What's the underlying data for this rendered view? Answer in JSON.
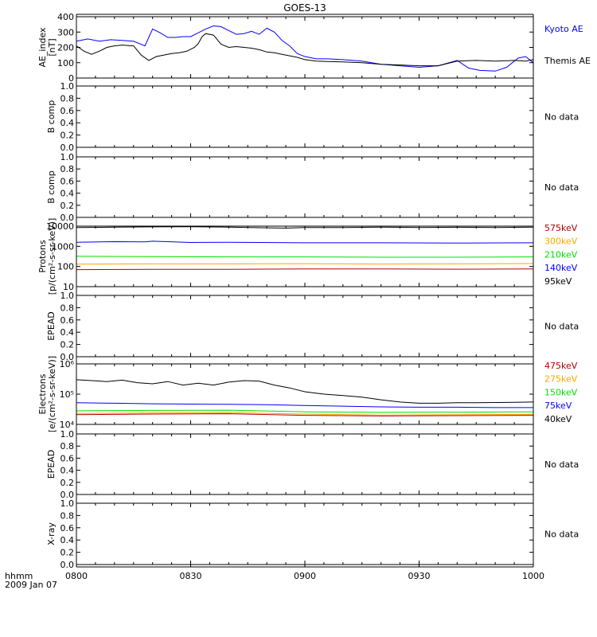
{
  "title": "GOES-13",
  "time_axis": {
    "ticks": [
      "0800",
      "0830",
      "0900",
      "0930",
      "1000"
    ],
    "row_label": "hhmm",
    "date_label": "2009 Jan 07"
  },
  "colors": {
    "axis": "#000000",
    "black": "#000000",
    "blue": "#0000ff",
    "green": "#00e000",
    "orange": "#ffa500",
    "red": "#b00000"
  },
  "chart_data": [
    {
      "id": "ae",
      "type": "line",
      "ylabel": [
        "AE_index",
        "[nT]"
      ],
      "ylim": [
        0,
        400
      ],
      "yticks": [
        "0",
        "100",
        "200",
        "300",
        "400"
      ],
      "x_range": [
        "08:00",
        "10:00"
      ],
      "series": [
        {
          "name": "Kyoto AE",
          "color": "#0000ff",
          "x": [
            0,
            3,
            6,
            9,
            12,
            15,
            18,
            20,
            22,
            24,
            26,
            28,
            30,
            32,
            34,
            36,
            38,
            40,
            42,
            44,
            46,
            48,
            50,
            52,
            54,
            56,
            58,
            60,
            63,
            66,
            70,
            75,
            80,
            85,
            90,
            95,
            100,
            103,
            106,
            110,
            113,
            116,
            118,
            120
          ],
          "y": [
            240,
            255,
            240,
            250,
            245,
            240,
            210,
            320,
            295,
            265,
            265,
            270,
            270,
            295,
            320,
            340,
            335,
            310,
            285,
            290,
            305,
            285,
            325,
            300,
            245,
            210,
            160,
            140,
            125,
            125,
            120,
            110,
            90,
            80,
            70,
            80,
            115,
            65,
            50,
            45,
            70,
            130,
            140,
            100
          ]
        },
        {
          "name": "Themis AE",
          "color": "#000000",
          "x": [
            0,
            2,
            4,
            6,
            8,
            10,
            12,
            15,
            17,
            19,
            21,
            23,
            25,
            27,
            29,
            31,
            32,
            33,
            34,
            36,
            38,
            40,
            42,
            44,
            46,
            48,
            50,
            52,
            54,
            56,
            58,
            60,
            63,
            66,
            70,
            75,
            80,
            85,
            90,
            95,
            100,
            105,
            110,
            115,
            118,
            120
          ],
          "y": [
            210,
            175,
            155,
            175,
            200,
            210,
            215,
            210,
            150,
            115,
            140,
            150,
            160,
            165,
            175,
            200,
            225,
            270,
            290,
            280,
            220,
            200,
            205,
            200,
            195,
            185,
            170,
            165,
            155,
            145,
            135,
            120,
            110,
            108,
            105,
            100,
            90,
            85,
            80,
            80,
            110,
            115,
            110,
            115,
            110,
            120
          ]
        }
      ],
      "legend": [
        "Kyoto AE",
        "Themis AE"
      ]
    },
    {
      "id": "b1",
      "type": "line",
      "ylabel": [
        "B comp"
      ],
      "ylim": [
        0,
        1
      ],
      "yticks": [
        "0.0",
        "0.2",
        "0.4",
        "0.6",
        "0.8",
        "1.0"
      ],
      "series": [],
      "annotation": "No data"
    },
    {
      "id": "b2",
      "type": "line",
      "ylabel": [
        "B comp"
      ],
      "ylim": [
        0,
        1
      ],
      "yticks": [
        "0.0",
        "0.2",
        "0.4",
        "0.6",
        "0.8",
        "1.0"
      ],
      "series": [],
      "annotation": "No data"
    },
    {
      "id": "protons",
      "type": "line",
      "log": true,
      "ylabel": [
        "Protons",
        "[p/(cm²-s-sr-keV)]"
      ],
      "ylim": [
        10,
        10000
      ],
      "yticks": [
        "10",
        "100",
        "1000",
        "10000"
      ],
      "series": [
        {
          "name": "575keV",
          "color": "#b00000",
          "x": [
            0,
            20,
            40,
            60,
            80,
            100,
            120
          ],
          "y": [
            70,
            72,
            72,
            75,
            75,
            73,
            75
          ]
        },
        {
          "name": "300keV",
          "color": "#ffa500",
          "x": [
            0,
            20,
            40,
            60,
            80,
            100,
            120
          ],
          "y": [
            130,
            135,
            135,
            138,
            132,
            135,
            140
          ]
        },
        {
          "name": "210keV",
          "color": "#00e000",
          "x": [
            0,
            20,
            40,
            60,
            80,
            100,
            120
          ],
          "y": [
            320,
            310,
            300,
            300,
            290,
            290,
            300
          ]
        },
        {
          "name": "140keV",
          "color": "#0000ff",
          "x": [
            0,
            10,
            18,
            20,
            30,
            40,
            60,
            80,
            100,
            120
          ],
          "y": [
            1600,
            1700,
            1650,
            1800,
            1550,
            1600,
            1500,
            1500,
            1450,
            1500
          ]
        },
        {
          "name": "95keV",
          "color": "#000000",
          "x": [
            0,
            10,
            20,
            30,
            40,
            50,
            55,
            60,
            70,
            80,
            90,
            100,
            110,
            120
          ],
          "y": [
            8500,
            8900,
            9200,
            9300,
            9000,
            8300,
            8000,
            8600,
            8500,
            8900,
            8600,
            8800,
            8500,
            8900
          ]
        }
      ],
      "legend": [
        "575keV",
        "300keV",
        "210keV",
        "140keV",
        "95keV"
      ]
    },
    {
      "id": "epead1",
      "type": "line",
      "ylabel": [
        "EPEAD"
      ],
      "ylim": [
        0,
        1
      ],
      "yticks": [
        "0.0",
        "0.2",
        "0.4",
        "0.6",
        "0.8",
        "1.0"
      ],
      "series": [],
      "annotation": "No data"
    },
    {
      "id": "electrons",
      "type": "line",
      "log": true,
      "ylabel": [
        "Electrons",
        "[e/(cm²-s-sr-keV)]"
      ],
      "ylim": [
        10000,
        1000000
      ],
      "yticks": [
        "10⁴",
        "10⁵",
        "10⁶"
      ],
      "series": [
        {
          "name": "475keV",
          "color": "#b00000",
          "x": [
            0,
            20,
            40,
            60,
            80,
            100,
            120
          ],
          "y": [
            21000,
            22000,
            22500,
            20000,
            19000,
            19500,
            20000
          ]
        },
        {
          "name": "275keV",
          "color": "#ffa500",
          "x": [
            0,
            20,
            40,
            60,
            80,
            100,
            120
          ],
          "y": [
            23000,
            24000,
            24500,
            22000,
            20500,
            21000,
            21500
          ]
        },
        {
          "name": "150keV",
          "color": "#00e000",
          "x": [
            0,
            20,
            40,
            60,
            80,
            100,
            120
          ],
          "y": [
            28000,
            29000,
            29500,
            26000,
            25000,
            25500,
            26000
          ]
        },
        {
          "name": "75keV",
          "color": "#0000ff",
          "x": [
            0,
            10,
            20,
            30,
            40,
            50,
            60,
            70,
            80,
            90,
            100,
            110,
            120
          ],
          "y": [
            52000,
            50000,
            48000,
            47000,
            46000,
            45000,
            42000,
            40000,
            38000,
            37000,
            37000,
            36000,
            36000
          ]
        },
        {
          "name": "40keV",
          "color": "#000000",
          "x": [
            0,
            4,
            8,
            12,
            16,
            20,
            24,
            28,
            32,
            36,
            40,
            44,
            48,
            52,
            56,
            60,
            65,
            70,
            75,
            80,
            85,
            90,
            95,
            100,
            105,
            110,
            115,
            120
          ],
          "y": [
            300000,
            280000,
            260000,
            290000,
            240000,
            220000,
            260000,
            200000,
            230000,
            200000,
            250000,
            280000,
            270000,
            200000,
            160000,
            120000,
            100000,
            90000,
            80000,
            65000,
            55000,
            50000,
            50000,
            52000,
            52000,
            53000,
            54000,
            55000
          ]
        }
      ],
      "legend": [
        "475keV",
        "275keV",
        "150keV",
        "75keV",
        "40keV"
      ]
    },
    {
      "id": "epead2",
      "type": "line",
      "ylabel": [
        "EPEAD"
      ],
      "ylim": [
        0,
        1
      ],
      "yticks": [
        "0.0",
        "0.2",
        "0.4",
        "0.6",
        "0.8",
        "1.0"
      ],
      "series": [],
      "annotation": "No data"
    },
    {
      "id": "xray",
      "type": "line",
      "ylabel": [
        "X-ray"
      ],
      "ylim": [
        0,
        1
      ],
      "yticks": [
        "0.0",
        "0.2",
        "0.4",
        "0.6",
        "0.8",
        "1.0"
      ],
      "series": [],
      "annotation": "No data"
    }
  ]
}
